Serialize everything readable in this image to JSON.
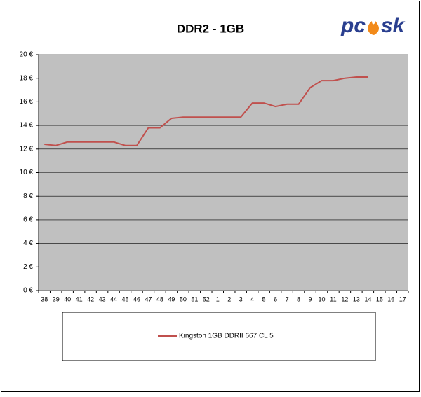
{
  "chart_data": {
    "type": "line",
    "title": "DDR2 - 1GB",
    "logo": [
      "pc",
      "sk"
    ],
    "categories": [
      "38",
      "39",
      "40",
      "41",
      "42",
      "43",
      "44",
      "45",
      "46",
      "47",
      "48",
      "49",
      "50",
      "51",
      "52",
      "1",
      "2",
      "3",
      "4",
      "5",
      "6",
      "7",
      "8",
      "9",
      "10",
      "11",
      "12",
      "13",
      "14",
      "15",
      "16",
      "17"
    ],
    "series": [
      {
        "name": "Kingston 1GB DDRII 667 CL 5",
        "color": "#c0504d",
        "values": [
          12.4,
          12.3,
          12.6,
          12.6,
          12.6,
          12.6,
          12.6,
          12.3,
          12.3,
          13.8,
          13.8,
          14.6,
          14.7,
          14.7,
          14.7,
          14.7,
          14.7,
          14.7,
          15.9,
          15.9,
          15.6,
          15.8,
          15.8,
          17.2,
          17.8,
          17.8,
          18.0,
          18.1,
          18.1,
          null,
          null,
          null
        ]
      }
    ],
    "ylim": [
      0,
      20
    ],
    "yticks": [
      {
        "value": 0,
        "label": "0 €"
      },
      {
        "value": 2,
        "label": "2 €"
      },
      {
        "value": 4,
        "label": "4 €"
      },
      {
        "value": 6,
        "label": "6 €"
      },
      {
        "value": 8,
        "label": "8 €"
      },
      {
        "value": 10,
        "label": "10 €"
      },
      {
        "value": 12,
        "label": "12 €"
      },
      {
        "value": 14,
        "label": "14 €"
      },
      {
        "value": 16,
        "label": "16 €"
      },
      {
        "value": 18,
        "label": "18 €"
      },
      {
        "value": 20,
        "label": "20 €"
      }
    ],
    "grid": true
  }
}
